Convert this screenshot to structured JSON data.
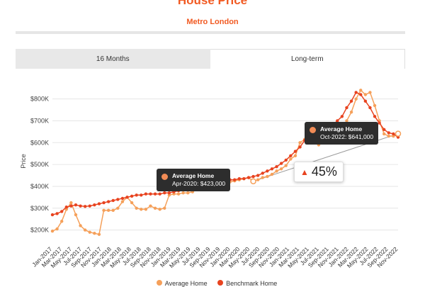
{
  "header": {
    "title": "House Price",
    "subtitle": "Metro London"
  },
  "tabs": [
    {
      "label": "16 Months",
      "active": false
    },
    {
      "label": "Long-term",
      "active": true
    }
  ],
  "colors": {
    "accent": "#f15a22",
    "series1": "#f5a05a",
    "series2": "#e8431f",
    "tooltip_bg": "#2d2d2d"
  },
  "tooltips": [
    {
      "title": "Average Home",
      "text": "Apr-2020: $423,000"
    },
    {
      "title": "Average Home",
      "text": "Oct-2022: $641,000"
    }
  ],
  "badge": {
    "icon": "up-triangle-icon",
    "text": "45%"
  },
  "legend": [
    {
      "label": "Average Home",
      "color": "#f5a05a"
    },
    {
      "label": "Benchmark Home",
      "color": "#e8431f"
    }
  ],
  "chart_data": {
    "type": "line",
    "title": "",
    "xlabel": "",
    "ylabel": "Price",
    "ylim": [
      150000,
      880000
    ],
    "y_ticks": [
      200000,
      300000,
      400000,
      500000,
      600000,
      700000,
      800000
    ],
    "y_tick_labels": [
      "$200K",
      "$300K",
      "$400K",
      "$500K",
      "$600K",
      "$700K",
      "$800K"
    ],
    "x_tick_labels": [
      "Jan-2017",
      "Mar-2017",
      "May-2017",
      "Jul-2017",
      "Sep-2017",
      "Nov-2017",
      "Jan-2018",
      "Mar-2018",
      "May-2018",
      "Jul-2018",
      "Sep-2018",
      "Nov-2018",
      "Jan-2019",
      "Mar-2019",
      "May-2019",
      "Jul-2019",
      "Sep-2019",
      "Nov-2019",
      "Jan-2020",
      "Mar-2020",
      "May-2020",
      "Jul-2020",
      "Sep-2020",
      "Nov-2020",
      "Jan-2021",
      "Mar-2021",
      "May-2021",
      "Jul-2021",
      "Sep-2021",
      "Nov-2021",
      "Jan-2022",
      "Mar-2022",
      "May-2022",
      "Jul-2022",
      "Sep-2022",
      "Nov-2022"
    ],
    "grid": true,
    "legend_position": "bottom",
    "series": [
      {
        "name": "Average Home",
        "color": "#f5a05a",
        "values": [
          195000,
          205000,
          240000,
          295000,
          325000,
          270000,
          220000,
          200000,
          190000,
          185000,
          180000,
          290000,
          290000,
          290000,
          300000,
          330000,
          350000,
          325000,
          300000,
          295000,
          295000,
          310000,
          300000,
          295000,
          300000,
          360000,
          365000,
          365000,
          370000,
          370000,
          375000,
          390000,
          400000,
          390000,
          400000,
          405000,
          410000,
          410000,
          420000,
          425000,
          430000,
          435000,
          440000,
          423000,
          430000,
          440000,
          445000,
          455000,
          470000,
          480000,
          495000,
          525000,
          540000,
          600000,
          615000,
          620000,
          630000,
          590000,
          600000,
          610000,
          620000,
          640000,
          660000,
          700000,
          740000,
          800000,
          840000,
          820000,
          830000,
          770000,
          700000,
          640000,
          630000,
          630000,
          641000
        ]
      },
      {
        "name": "Benchmark Home",
        "color": "#e8431f",
        "values": [
          270000,
          275000,
          285000,
          305000,
          310000,
          315000,
          310000,
          308000,
          310000,
          315000,
          320000,
          325000,
          330000,
          335000,
          340000,
          345000,
          350000,
          355000,
          360000,
          360000,
          365000,
          365000,
          365000,
          365000,
          370000,
          370000,
          375000,
          380000,
          385000,
          385000,
          390000,
          395000,
          400000,
          405000,
          410000,
          415000,
          420000,
          425000,
          430000,
          430000,
          435000,
          435000,
          440000,
          445000,
          450000,
          460000,
          470000,
          480000,
          490000,
          505000,
          520000,
          540000,
          560000,
          580000,
          610000,
          630000,
          640000,
          650000,
          660000,
          670000,
          680000,
          700000,
          720000,
          760000,
          790000,
          830000,
          820000,
          790000,
          760000,
          720000,
          690000,
          660000,
          645000,
          640000,
          625000
        ]
      }
    ],
    "annotations": [
      {
        "text": "Apr-2020: $423,000",
        "value": 423000
      },
      {
        "text": "Oct-2022: $641,000",
        "value": 641000
      },
      {
        "text": "45%"
      }
    ]
  }
}
